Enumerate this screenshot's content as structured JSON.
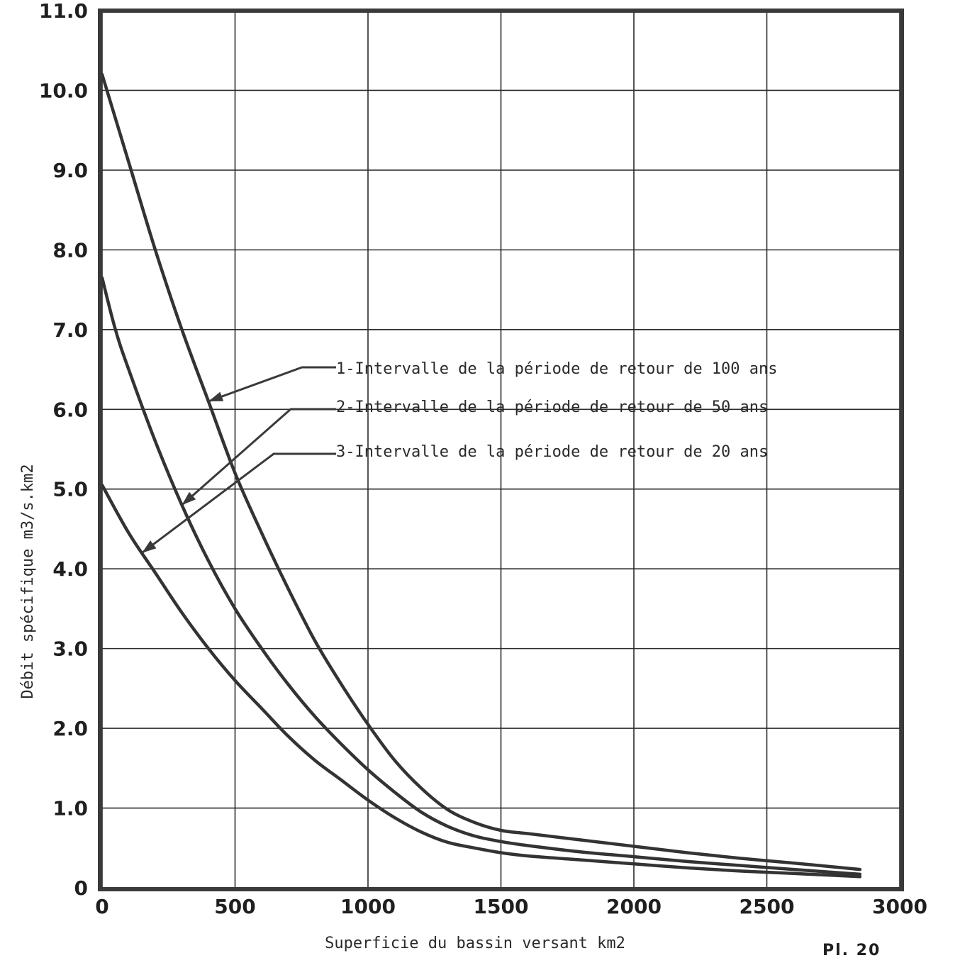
{
  "chart_data": {
    "type": "line",
    "title": "",
    "xlabel": "Superficie du bassin versant km2",
    "ylabel": "Débit spécifique m3/s.km2",
    "xlim": [
      0,
      3000
    ],
    "ylim": [
      0,
      11
    ],
    "x_ticks": [
      "0",
      "500",
      "1000",
      "1500",
      "2000",
      "2500",
      "3000"
    ],
    "y_ticks": [
      "0",
      "1.0",
      "2.0",
      "3.0",
      "4.0",
      "5.0",
      "6.0",
      "7.0",
      "8.0",
      "9.0",
      "10.0",
      "11.0"
    ],
    "grid": true,
    "legend_placement": "center-right",
    "series": [
      {
        "name": "1-Intervalle de la période de retour de 100 ans",
        "x": [
          0,
          100,
          200,
          300,
          400,
          500,
          600,
          700,
          800,
          900,
          1000,
          1100,
          1200,
          1300,
          1400,
          1500,
          1600,
          1800,
          2000,
          2200,
          2400,
          2600,
          2850
        ],
        "y": [
          10.2,
          9.1,
          8.0,
          7.0,
          6.1,
          5.2,
          4.45,
          3.75,
          3.1,
          2.55,
          2.05,
          1.6,
          1.25,
          0.98,
          0.82,
          0.72,
          0.68,
          0.6,
          0.52,
          0.44,
          0.37,
          0.31,
          0.23
        ]
      },
      {
        "name": "2-Intervalle de la période de retour de 50 ans",
        "x": [
          0,
          50,
          100,
          200,
          300,
          400,
          500,
          600,
          700,
          800,
          900,
          1000,
          1100,
          1200,
          1300,
          1400,
          1500,
          1600,
          1800,
          2000,
          2200,
          2400,
          2600,
          2850
        ],
        "y": [
          7.65,
          7.0,
          6.5,
          5.6,
          4.8,
          4.1,
          3.5,
          3.0,
          2.55,
          2.15,
          1.8,
          1.48,
          1.2,
          0.95,
          0.77,
          0.65,
          0.58,
          0.53,
          0.45,
          0.39,
          0.33,
          0.28,
          0.23,
          0.17
        ]
      },
      {
        "name": "3-Intervalle de la période de retour de 20 ans",
        "x": [
          0,
          100,
          200,
          300,
          400,
          500,
          600,
          700,
          800,
          900,
          1000,
          1100,
          1200,
          1300,
          1400,
          1500,
          1600,
          1800,
          2000,
          2200,
          2400,
          2600,
          2850
        ],
        "y": [
          5.05,
          4.45,
          3.95,
          3.45,
          3.0,
          2.6,
          2.25,
          1.9,
          1.6,
          1.35,
          1.1,
          0.88,
          0.7,
          0.57,
          0.5,
          0.44,
          0.4,
          0.35,
          0.3,
          0.25,
          0.21,
          0.18,
          0.14
        ]
      }
    ]
  },
  "legend": [
    "1-Intervalle de la période de retour de 100 ans",
    "2-Intervalle de la période de retour de 50 ans",
    "3-Intervalle de la période de retour de 20 ans"
  ],
  "plate_label": "Pl. 20"
}
